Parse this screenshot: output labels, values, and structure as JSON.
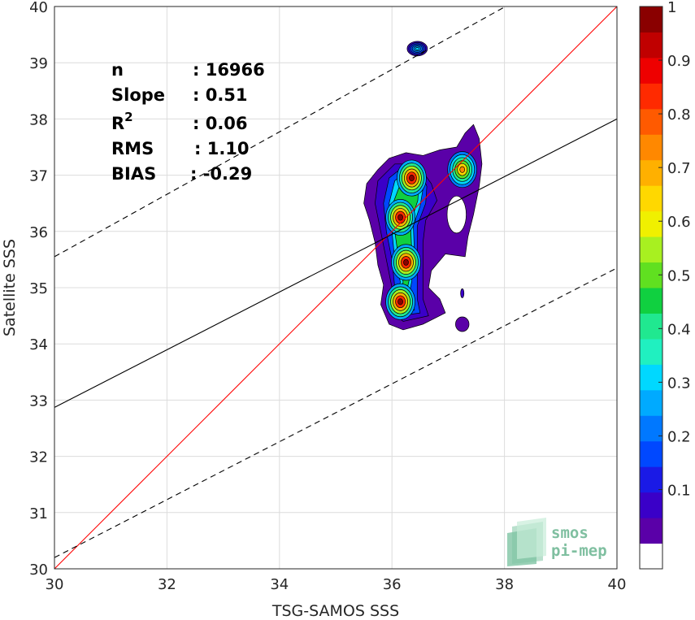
{
  "chart_data": {
    "type": "contour",
    "xlabel": "TSG-SAMOS SSS",
    "ylabel": "Satellite SSS",
    "xlim": [
      30,
      40
    ],
    "ylim": [
      30,
      40
    ],
    "xticks": [
      "30",
      "32",
      "34",
      "36",
      "38",
      "40"
    ],
    "yticks": [
      "30",
      "31",
      "32",
      "33",
      "34",
      "35",
      "36",
      "37",
      "38",
      "39",
      "40"
    ],
    "grid": true,
    "lines": [
      {
        "name": "one-to-one",
        "color": "#ff0000",
        "style": "solid",
        "points": [
          [
            30,
            30
          ],
          [
            40,
            40
          ]
        ]
      },
      {
        "name": "regression",
        "color": "#000000",
        "style": "solid",
        "points": [
          [
            30,
            32.87
          ],
          [
            40,
            38.0
          ]
        ]
      },
      {
        "name": "upper-bound",
        "color": "#000000",
        "style": "dashed",
        "points": [
          [
            30,
            35.55
          ],
          [
            40,
            41.1
          ]
        ]
      },
      {
        "name": "lower-bound",
        "color": "#000000",
        "style": "dashed",
        "points": [
          [
            30,
            30.2
          ],
          [
            40,
            35.35
          ]
        ]
      }
    ],
    "density_peaks": [
      {
        "x": 36.35,
        "y": 36.95,
        "peak": 1.0
      },
      {
        "x": 36.15,
        "y": 36.25,
        "peak": 1.0
      },
      {
        "x": 36.25,
        "y": 35.45,
        "peak": 1.0
      },
      {
        "x": 36.15,
        "y": 34.75,
        "peak": 1.0
      },
      {
        "x": 37.25,
        "y": 37.1,
        "peak": 0.75
      },
      {
        "x": 36.45,
        "y": 39.25,
        "peak": 0.35
      }
    ],
    "colorbar": {
      "min": 0,
      "max": 1,
      "ticks": [
        "0.1",
        "0.2",
        "0.3",
        "0.4",
        "0.5",
        "0.6",
        "0.7",
        "0.8",
        "0.9",
        "1"
      ],
      "colors": [
        "#ffffff",
        "#5a00a8",
        "#3a00c8",
        "#1a1ae6",
        "#0048ff",
        "#0078ff",
        "#00aaff",
        "#00d8ff",
        "#20f0c0",
        "#20e890",
        "#10d040",
        "#60e020",
        "#a8f020",
        "#f0f000",
        "#ffd800",
        "#ffb000",
        "#ff8800",
        "#ff5a00",
        "#ff2a00",
        "#ee0000",
        "#c00000",
        "#8a0000"
      ]
    },
    "stats": [
      {
        "label": "n",
        "sep": ":",
        "value": "16966"
      },
      {
        "label": "Slope",
        "sep": ":",
        "value": "0.51"
      },
      {
        "label": "R",
        "sup": "2",
        "sep": ":",
        "value": "0.06"
      },
      {
        "label": "RMS",
        "sep": ":",
        "value": "1.10"
      },
      {
        "label": "BIAS",
        "sep": ":",
        "value": "-0.29"
      }
    ]
  },
  "logo": {
    "line1": "smos",
    "line2": "pi-mep"
  }
}
